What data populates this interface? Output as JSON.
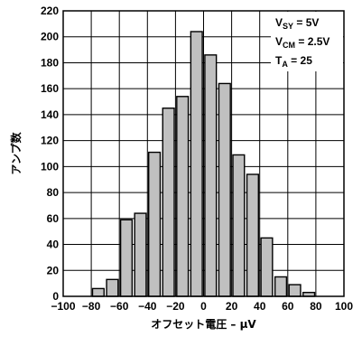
{
  "chart_data": {
    "type": "bar",
    "title": "",
    "xlabel": "オフセット電圧 – μV",
    "ylabel": "アンプ数",
    "xlim": [
      -100,
      100
    ],
    "ylim": [
      0,
      220
    ],
    "x_ticks": [
      -100,
      -80,
      -60,
      -40,
      -20,
      0,
      20,
      40,
      60,
      80,
      100
    ],
    "y_ticks": [
      0,
      20,
      40,
      60,
      80,
      100,
      120,
      140,
      160,
      180,
      200,
      220
    ],
    "grid": true,
    "bar_color": "#c0c0c0",
    "bars": [
      {
        "x": -75,
        "value": 6
      },
      {
        "x": -65,
        "value": 13
      },
      {
        "x": -55,
        "value": 59
      },
      {
        "x": -45,
        "value": 64
      },
      {
        "x": -35,
        "value": 111
      },
      {
        "x": -25,
        "value": 145
      },
      {
        "x": -15,
        "value": 154
      },
      {
        "x": -5,
        "value": 204
      },
      {
        "x": 5,
        "value": 186
      },
      {
        "x": 15,
        "value": 164
      },
      {
        "x": 25,
        "value": 109
      },
      {
        "x": 35,
        "value": 94
      },
      {
        "x": 45,
        "value": 45
      },
      {
        "x": 55,
        "value": 15
      },
      {
        "x": 65,
        "value": 9
      },
      {
        "x": 75,
        "value": 3
      }
    ],
    "conditions": [
      {
        "main": "V",
        "sub": "SY",
        "rest": " = 5V"
      },
      {
        "main": "V",
        "sub": "CM",
        "rest": " = 2.5V"
      },
      {
        "main": "T",
        "sub": "A",
        "rest": " = 25"
      }
    ]
  }
}
